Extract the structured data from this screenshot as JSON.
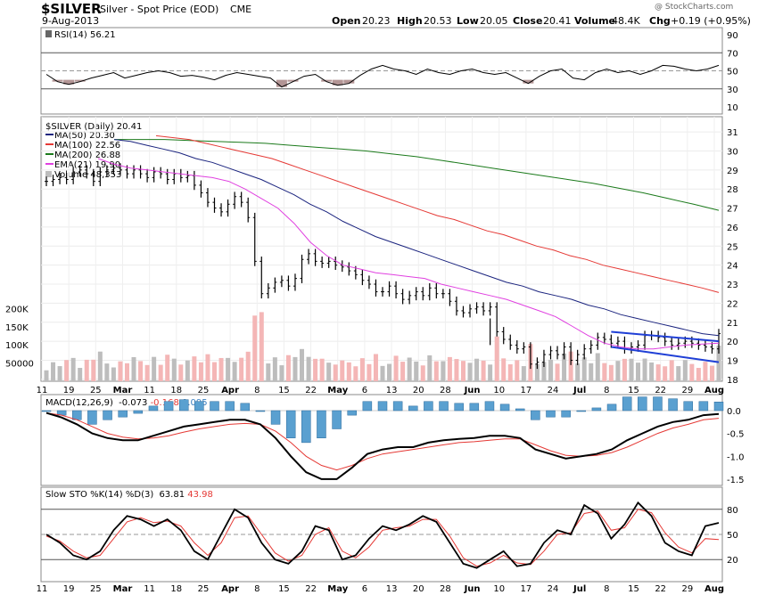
{
  "header": {
    "symbol": "$SILVER",
    "name": "Silver - Spot Price (EOD)",
    "exchange": "CME",
    "date": "9-Aug-2013",
    "watermark": "@ StockCharts.com",
    "quote": {
      "open_label": "Open",
      "open": "20.23",
      "high_label": "High",
      "high": "20.53",
      "low_label": "Low",
      "low": "20.05",
      "close_label": "Close",
      "close": "20.41",
      "volume_label": "Volume",
      "volume": "48.4K",
      "chg_label": "Chg",
      "chg": "+0.19 (+0.95%)"
    }
  },
  "legends": {
    "rsi": "RSI(14) 56.21",
    "price": "$SILVER (Daily) 20.41",
    "ma50": "MA(50) 20.30",
    "ma100": "MA(100) 22.56",
    "ma200": "MA(200) 26.88",
    "ema21": "EMA(21) 19.90",
    "volume": "Volume 48,353",
    "macd_a": "MACD(12,26,9)",
    "macd_b": "-0.073",
    "macd_c": "-0.168",
    "macd_d": "0.095",
    "sto_a": "Slow STO %K(14) %D(3)",
    "sto_b": "63.81",
    "sto_c": "43.98"
  },
  "colors": {
    "ma50": "#1a237e",
    "ma100": "#e53935",
    "ma200": "#1b7a1b",
    "ema21": "#e040e0",
    "vol_up": "#bdbdbd",
    "vol_down": "#f4b6b6",
    "macd_hist": "#5aa0d0",
    "rsi_fill": "#a07a7a",
    "trend": "#1f3fd6"
  },
  "chart_data": {
    "type": "line",
    "title": "$SILVER Silver - Spot Price (EOD) CME",
    "x_tick_labels": [
      "11",
      "19",
      "25",
      "Mar",
      "11",
      "18",
      "25",
      "Apr",
      "8",
      "15",
      "22",
      "May",
      "6",
      "13",
      "20",
      "28",
      "Jun",
      "10",
      "17",
      "24",
      "Jul",
      "8",
      "15",
      "22",
      "29",
      "Aug"
    ],
    "price_axis_ticks": [
      "31",
      "30",
      "29",
      "28",
      "27",
      "26",
      "25",
      "24",
      "23",
      "22",
      "21",
      "20",
      "19",
      "18"
    ],
    "volume_axis_ticks": [
      "200K",
      "150K",
      "100K",
      "50000"
    ],
    "rsi_axis_ticks": [
      "90",
      "70",
      "50",
      "30",
      "10"
    ],
    "macd_axis_ticks": [
      "0.0",
      "-0.5",
      "-1.0",
      "-1.5"
    ],
    "sto_axis_ticks": [
      "80",
      "50",
      "20"
    ],
    "price_ylim": [
      17.9,
      31.8
    ],
    "close": [
      28.4,
      28.5,
      28.6,
      28.5,
      28.9,
      29.0,
      28.8,
      28.4,
      28.9,
      29.0,
      29.1,
      29.0,
      28.8,
      29.0,
      28.8,
      28.6,
      28.9,
      28.8,
      28.5,
      28.8,
      28.6,
      28.7,
      28.2,
      27.8,
      27.3,
      27.0,
      26.8,
      27.2,
      27.6,
      27.3,
      26.5,
      24.2,
      22.5,
      22.8,
      23.1,
      23.2,
      22.9,
      23.3,
      24.3,
      24.6,
      24.2,
      24.1,
      24.2,
      24.0,
      23.9,
      23.7,
      23.5,
      23.2,
      23.0,
      22.6,
      22.6,
      22.9,
      22.5,
      22.2,
      22.4,
      22.6,
      22.4,
      22.8,
      22.5,
      22.5,
      22.1,
      21.6,
      21.5,
      21.7,
      21.8,
      21.6,
      21.8,
      20.5,
      20.1,
      19.8,
      19.6,
      19.7,
      18.8,
      18.9,
      19.3,
      19.5,
      19.3,
      19.7,
      19.0,
      19.3,
      19.6,
      19.8,
      20.2,
      20.1,
      19.9,
      20.0,
      19.6,
      19.7,
      19.8,
      20.3,
      20.3,
      20.2,
      20.0,
      19.8,
      19.9,
      20.0,
      19.9,
      19.8,
      19.7,
      19.6,
      20.4
    ],
    "ma50": [
      30.6,
      30.5,
      30.3,
      30.1,
      29.9,
      29.6,
      29.4,
      29.1,
      28.8,
      28.5,
      28.1,
      27.7,
      27.2,
      26.8,
      26.3,
      25.9,
      25.5,
      25.2,
      24.9,
      24.6,
      24.3,
      24.0,
      23.7,
      23.4,
      23.1,
      22.9,
      22.6,
      22.4,
      22.2,
      21.9,
      21.7,
      21.4,
      21.2,
      21.0,
      20.8,
      20.6,
      20.4,
      20.3
    ],
    "ma100": [
      30.8,
      30.7,
      30.6,
      30.4,
      30.2,
      30.0,
      29.8,
      29.6,
      29.3,
      29.0,
      28.7,
      28.4,
      28.1,
      27.8,
      27.5,
      27.2,
      26.9,
      26.6,
      26.4,
      26.1,
      25.8,
      25.6,
      25.3,
      25.0,
      24.8,
      24.5,
      24.3,
      24.0,
      23.8,
      23.6,
      23.4,
      23.2,
      23.0,
      22.8,
      22.56
    ],
    "ma200": [
      30.6,
      30.6,
      30.6,
      30.55,
      30.5,
      30.45,
      30.4,
      30.3,
      30.2,
      30.1,
      30.0,
      29.85,
      29.7,
      29.5,
      29.3,
      29.1,
      28.9,
      28.7,
      28.5,
      28.3,
      28.05,
      27.8,
      27.5,
      27.2,
      26.88
    ],
    "ema21": [
      29.6,
      29.3,
      29.1,
      29.0,
      28.9,
      28.8,
      28.7,
      28.6,
      28.4,
      28.0,
      27.5,
      27.0,
      26.2,
      25.2,
      24.5,
      24.0,
      23.8,
      23.6,
      23.5,
      23.4,
      23.3,
      23.0,
      22.8,
      22.6,
      22.4,
      22.2,
      21.9,
      21.6,
      21.3,
      20.8,
      20.3,
      19.9,
      19.7,
      19.6,
      19.6,
      19.7,
      19.8,
      19.85,
      19.9
    ],
    "rsi": [
      46,
      38,
      35,
      38,
      42,
      45,
      48,
      42,
      45,
      48,
      50,
      48,
      44,
      45,
      43,
      40,
      45,
      48,
      46,
      44,
      42,
      32,
      38,
      44,
      46,
      38,
      34,
      36,
      45,
      52,
      56,
      52,
      50,
      46,
      52,
      48,
      46,
      50,
      52,
      48,
      46,
      48,
      42,
      36,
      44,
      50,
      52,
      42,
      40,
      48,
      52,
      48,
      50,
      46,
      50,
      56,
      55,
      52,
      50,
      52,
      56
    ],
    "macd": [
      -0.05,
      -0.15,
      -0.3,
      -0.5,
      -0.6,
      -0.65,
      -0.65,
      -0.55,
      -0.45,
      -0.35,
      -0.3,
      -0.25,
      -0.2,
      -0.2,
      -0.3,
      -0.6,
      -1.0,
      -1.35,
      -1.5,
      -1.5,
      -1.25,
      -0.95,
      -0.85,
      -0.8,
      -0.8,
      -0.7,
      -0.65,
      -0.62,
      -0.6,
      -0.55,
      -0.55,
      -0.6,
      -0.85,
      -0.95,
      -1.05,
      -1.0,
      -0.95,
      -0.85,
      -0.65,
      -0.5,
      -0.35,
      -0.25,
      -0.2,
      -0.1,
      -0.073
    ],
    "macd_signal": [
      -0.05,
      -0.1,
      -0.2,
      -0.35,
      -0.5,
      -0.58,
      -0.62,
      -0.6,
      -0.55,
      -0.47,
      -0.4,
      -0.35,
      -0.3,
      -0.28,
      -0.3,
      -0.45,
      -0.7,
      -1.0,
      -1.2,
      -1.3,
      -1.2,
      -1.05,
      -0.95,
      -0.9,
      -0.85,
      -0.8,
      -0.75,
      -0.7,
      -0.68,
      -0.65,
      -0.62,
      -0.62,
      -0.75,
      -0.88,
      -0.98,
      -1.0,
      -0.98,
      -0.92,
      -0.8,
      -0.65,
      -0.5,
      -0.38,
      -0.3,
      -0.2,
      -0.168
    ],
    "sto_k": [
      50,
      40,
      25,
      20,
      30,
      55,
      72,
      68,
      60,
      68,
      55,
      30,
      20,
      50,
      80,
      70,
      40,
      20,
      15,
      30,
      60,
      55,
      20,
      25,
      45,
      60,
      55,
      62,
      72,
      65,
      40,
      15,
      10,
      20,
      30,
      12,
      15,
      40,
      55,
      50,
      85,
      75,
      45,
      62,
      88,
      72,
      40,
      30,
      25,
      60,
      63.81
    ],
    "sto_d": [
      48,
      42,
      30,
      22,
      25,
      45,
      65,
      70,
      64,
      66,
      60,
      40,
      25,
      40,
      70,
      72,
      50,
      28,
      18,
      25,
      50,
      58,
      30,
      22,
      35,
      55,
      58,
      60,
      68,
      68,
      48,
      22,
      12,
      16,
      25,
      16,
      14,
      30,
      50,
      52,
      75,
      78,
      55,
      58,
      80,
      76,
      52,
      35,
      28,
      45,
      43.98
    ]
  }
}
